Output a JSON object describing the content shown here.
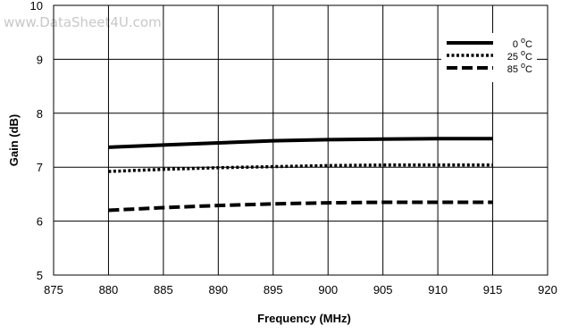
{
  "watermark": "www.DataSheet4U.com",
  "chart_data": {
    "type": "line",
    "title": "",
    "xlabel": "Frequency (MHz)",
    "ylabel": "Gain (dB)",
    "xlim": [
      875,
      920
    ],
    "ylim": [
      5,
      10
    ],
    "x_ticks": [
      "875",
      "880",
      "885",
      "890",
      "895",
      "900",
      "905",
      "910",
      "915",
      "920"
    ],
    "y_ticks": [
      "5",
      "6",
      "7",
      "8",
      "9",
      "10"
    ],
    "grid": true,
    "legend_position": "top-right",
    "x": [
      880,
      885,
      890,
      895,
      900,
      905,
      910,
      915
    ],
    "series": [
      {
        "name": "0 °C",
        "label_main": "0",
        "label_unit": "C",
        "style": "solid",
        "values": [
          7.37,
          7.41,
          7.45,
          7.49,
          7.51,
          7.52,
          7.53,
          7.53
        ]
      },
      {
        "name": "25 °C",
        "label_main": "25",
        "label_unit": "C",
        "style": "dotted",
        "values": [
          6.92,
          6.96,
          6.99,
          7.01,
          7.03,
          7.04,
          7.04,
          7.04
        ]
      },
      {
        "name": "85 °C",
        "label_main": "85",
        "label_unit": "C",
        "style": "dashed",
        "values": [
          6.2,
          6.25,
          6.29,
          6.32,
          6.34,
          6.35,
          6.35,
          6.35
        ]
      }
    ],
    "colors": {
      "line": "#000000",
      "grid": "#000000"
    }
  }
}
